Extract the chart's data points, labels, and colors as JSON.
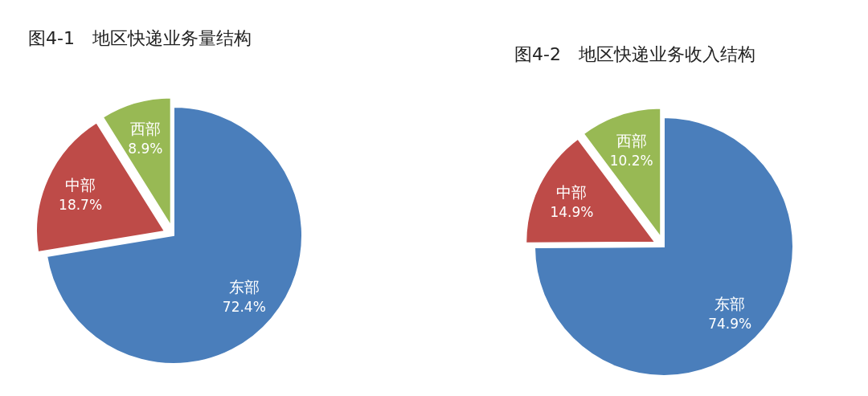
{
  "chart_data": [
    {
      "type": "pie",
      "title": "图4-1　地区快递业务量结构",
      "categories": [
        "东部",
        "中部",
        "西部"
      ],
      "values": [
        72.4,
        18.7,
        8.9
      ],
      "colors": [
        "#4a7ebb",
        "#be4b48",
        "#98b954"
      ],
      "value_labels": [
        "72.4%",
        "18.7%",
        "8.9%"
      ]
    },
    {
      "type": "pie",
      "title": "图4-2　地区快递业务收入结构",
      "categories": [
        "东部",
        "中部",
        "西部"
      ],
      "values": [
        74.9,
        14.9,
        10.2
      ],
      "colors": [
        "#4a7ebb",
        "#be4b48",
        "#98b954"
      ],
      "value_labels": [
        "74.9%",
        "14.9%",
        "10.2%"
      ]
    }
  ]
}
